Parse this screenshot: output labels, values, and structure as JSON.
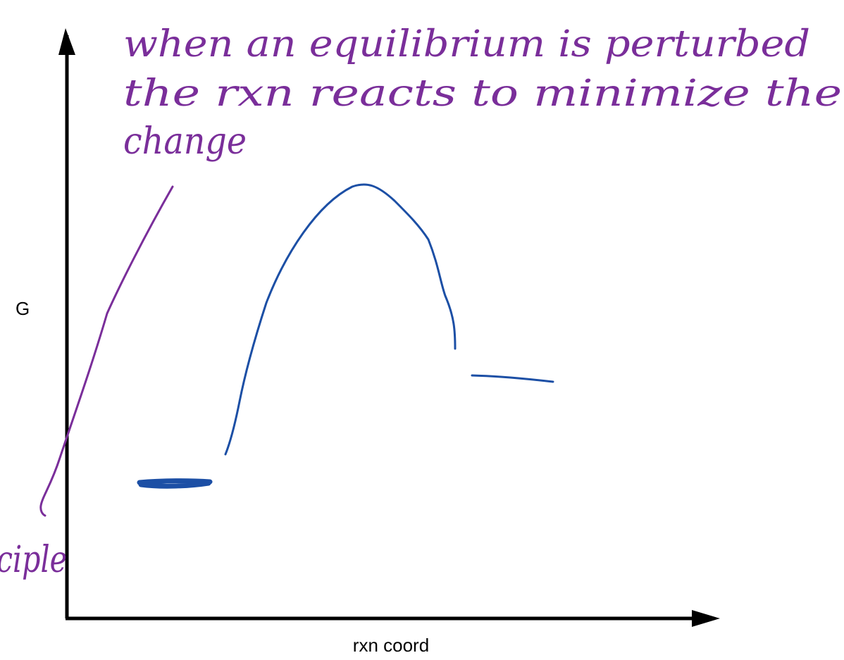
{
  "labels": {
    "y_axis": "G",
    "x_axis": "rxn coord"
  },
  "notes": {
    "lines": [
      "when an equilibrium is perturbed",
      "the rxn reacts to minimize the",
      "change"
    ],
    "fragment": "ciple"
  }
}
